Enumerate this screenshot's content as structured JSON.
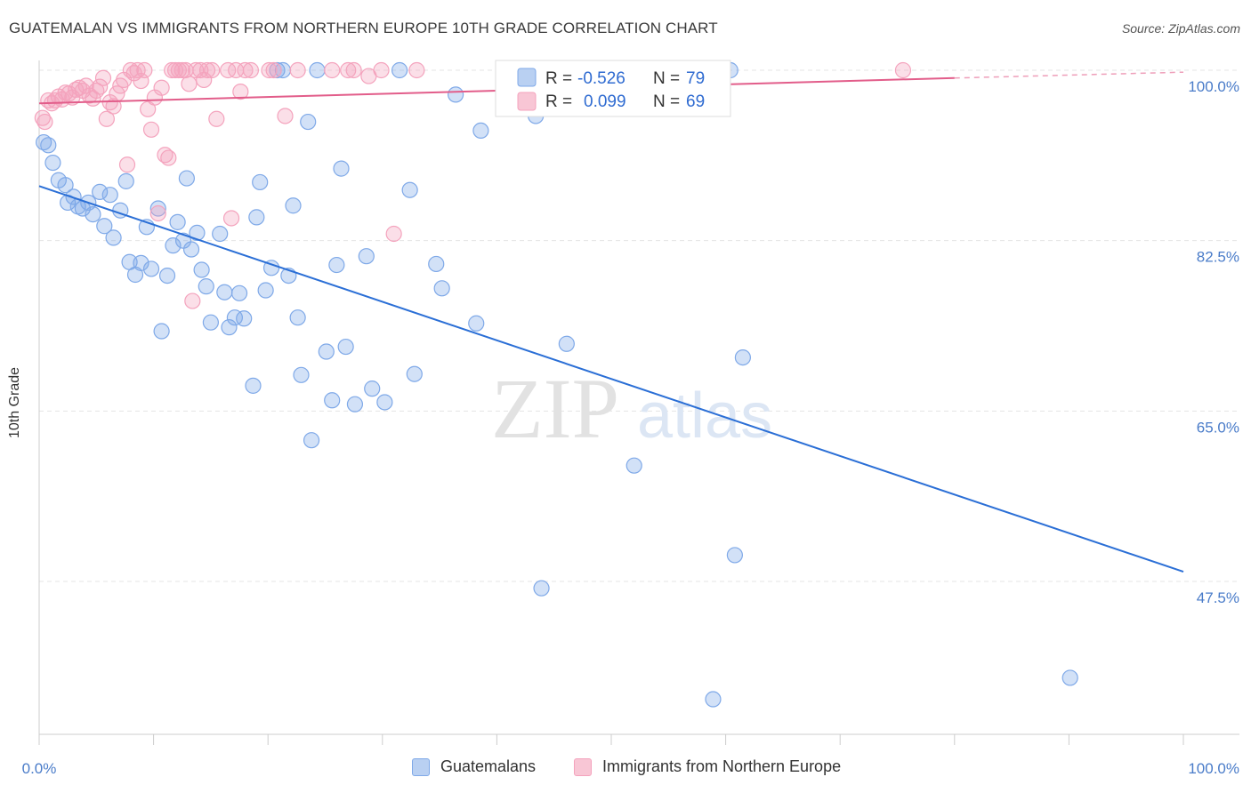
{
  "title": "GUATEMALAN VS IMMIGRANTS FROM NORTHERN EUROPE 10TH GRADE CORRELATION CHART",
  "source": "Source: ZipAtlas.com",
  "watermark": {
    "zip": "ZIP",
    "atlas": "atlas"
  },
  "legend": {
    "rows": [
      {
        "r_label": "R =",
        "r_value": "-0.526",
        "n_label": "N =",
        "n_value": "79"
      },
      {
        "r_label": "R =",
        "r_value": "0.099",
        "n_label": "N =",
        "n_value": "69"
      }
    ]
  },
  "chart_data": {
    "type": "scatter",
    "title": "GUATEMALAN VS IMMIGRANTS FROM NORTHERN EUROPE 10TH GRADE CORRELATION CHART",
    "xlabel": "",
    "ylabel": "10th Grade",
    "xlim": [
      0,
      100
    ],
    "ylim": [
      32.5,
      101.5
    ],
    "x_tick_labels": [
      "0.0%",
      "100.0%"
    ],
    "y_ticks": [
      100,
      82.5,
      65,
      47.5
    ],
    "y_tick_labels": [
      "100.0%",
      "82.5%",
      "65.0%",
      "47.5%"
    ],
    "grid": true,
    "legend_position": "bottom",
    "series": [
      {
        "name": "Guatemalans",
        "color": "#7fa9e8",
        "line_color": "#2b6fd6",
        "R": -0.526,
        "N": 79,
        "trend": {
          "x": [
            0,
            100
          ],
          "y": [
            88.1,
            48.5
          ]
        },
        "points": [
          [
            0.4,
            92.6
          ],
          [
            0.8,
            92.3
          ],
          [
            1.2,
            90.5
          ],
          [
            1.7,
            88.7
          ],
          [
            2.3,
            88.2
          ],
          [
            2.5,
            86.4
          ],
          [
            3.0,
            87.0
          ],
          [
            3.4,
            86.0
          ],
          [
            3.8,
            85.8
          ],
          [
            4.3,
            86.4
          ],
          [
            4.7,
            85.2
          ],
          [
            5.3,
            87.5
          ],
          [
            5.7,
            84.0
          ],
          [
            6.2,
            87.2
          ],
          [
            6.5,
            82.8
          ],
          [
            7.1,
            85.6
          ],
          [
            7.6,
            88.6
          ],
          [
            7.9,
            80.3
          ],
          [
            8.4,
            79.0
          ],
          [
            8.9,
            80.2
          ],
          [
            9.4,
            83.9
          ],
          [
            9.8,
            79.6
          ],
          [
            10.4,
            85.8
          ],
          [
            10.7,
            73.2
          ],
          [
            11.2,
            78.9
          ],
          [
            11.7,
            82.0
          ],
          [
            12.1,
            84.4
          ],
          [
            12.6,
            82.5
          ],
          [
            12.9,
            88.9
          ],
          [
            13.3,
            81.6
          ],
          [
            13.8,
            83.3
          ],
          [
            14.2,
            79.5
          ],
          [
            14.6,
            77.8
          ],
          [
            15.0,
            74.1
          ],
          [
            15.8,
            83.2
          ],
          [
            16.2,
            77.2
          ],
          [
            16.6,
            73.6
          ],
          [
            17.1,
            74.6
          ],
          [
            17.5,
            77.1
          ],
          [
            17.9,
            74.5
          ],
          [
            18.7,
            67.6
          ],
          [
            19.0,
            84.9
          ],
          [
            19.3,
            88.5
          ],
          [
            19.8,
            77.4
          ],
          [
            20.3,
            79.7
          ],
          [
            20.8,
            100.0
          ],
          [
            21.3,
            100.0
          ],
          [
            21.8,
            78.9
          ],
          [
            22.2,
            86.1
          ],
          [
            22.6,
            74.6
          ],
          [
            22.9,
            68.7
          ],
          [
            23.5,
            94.7
          ],
          [
            23.8,
            62.0
          ],
          [
            24.3,
            100.0
          ],
          [
            25.1,
            71.1
          ],
          [
            25.6,
            66.1
          ],
          [
            26.0,
            80.0
          ],
          [
            26.4,
            89.9
          ],
          [
            26.8,
            71.6
          ],
          [
            27.6,
            65.7
          ],
          [
            28.6,
            80.9
          ],
          [
            29.1,
            67.3
          ],
          [
            30.2,
            65.9
          ],
          [
            31.5,
            100.0
          ],
          [
            32.4,
            87.7
          ],
          [
            32.8,
            68.8
          ],
          [
            34.7,
            80.1
          ],
          [
            35.2,
            77.6
          ],
          [
            36.4,
            97.5
          ],
          [
            38.2,
            74.0
          ],
          [
            38.6,
            93.8
          ],
          [
            43.4,
            95.3
          ],
          [
            43.9,
            46.8
          ],
          [
            46.1,
            71.9
          ],
          [
            52.0,
            59.4
          ],
          [
            58.9,
            35.4
          ],
          [
            60.4,
            100.0
          ],
          [
            60.8,
            50.2
          ],
          [
            61.5,
            70.5
          ],
          [
            90.1,
            37.6
          ]
        ]
      },
      {
        "name": "Immigrants from Northern Europe",
        "color": "#f4a3bd",
        "line_color": "#e25d8a",
        "R": 0.099,
        "N": 69,
        "trend": {
          "x": [
            0,
            80
          ],
          "y": [
            96.6,
            99.2
          ]
        },
        "trend_dashed": {
          "x": [
            80,
            100
          ],
          "y": [
            99.2,
            99.8
          ]
        },
        "points": [
          [
            0.3,
            95.1
          ],
          [
            0.5,
            94.7
          ],
          [
            0.8,
            96.9
          ],
          [
            1.1,
            96.6
          ],
          [
            1.4,
            96.9
          ],
          [
            1.7,
            97.3
          ],
          [
            2.0,
            97.0
          ],
          [
            2.3,
            97.7
          ],
          [
            2.6,
            97.6
          ],
          [
            2.9,
            97.2
          ],
          [
            3.2,
            98.0
          ],
          [
            3.5,
            98.2
          ],
          [
            3.8,
            97.9
          ],
          [
            4.1,
            98.4
          ],
          [
            4.4,
            97.4
          ],
          [
            4.7,
            97.1
          ],
          [
            5.0,
            97.9
          ],
          [
            5.3,
            98.3
          ],
          [
            5.6,
            99.2
          ],
          [
            5.9,
            95.0
          ],
          [
            6.2,
            96.7
          ],
          [
            6.5,
            96.3
          ],
          [
            6.8,
            97.6
          ],
          [
            7.1,
            98.4
          ],
          [
            7.4,
            99.0
          ],
          [
            7.7,
            90.3
          ],
          [
            8.0,
            100.0
          ],
          [
            8.3,
            99.7
          ],
          [
            8.6,
            100.0
          ],
          [
            8.9,
            98.9
          ],
          [
            9.2,
            100.0
          ],
          [
            9.5,
            96.0
          ],
          [
            9.8,
            93.9
          ],
          [
            10.1,
            97.2
          ],
          [
            10.4,
            85.3
          ],
          [
            10.7,
            98.2
          ],
          [
            11.0,
            91.3
          ],
          [
            11.3,
            91.0
          ],
          [
            11.6,
            100.0
          ],
          [
            11.9,
            100.0
          ],
          [
            12.2,
            100.0
          ],
          [
            12.5,
            100.0
          ],
          [
            12.8,
            100.0
          ],
          [
            13.1,
            98.6
          ],
          [
            13.4,
            76.3
          ],
          [
            13.7,
            100.0
          ],
          [
            14.1,
            100.0
          ],
          [
            14.4,
            99.0
          ],
          [
            14.7,
            100.0
          ],
          [
            15.1,
            100.0
          ],
          [
            15.5,
            95.0
          ],
          [
            16.5,
            100.0
          ],
          [
            16.8,
            84.8
          ],
          [
            17.2,
            100.0
          ],
          [
            17.6,
            97.8
          ],
          [
            18.0,
            100.0
          ],
          [
            18.5,
            100.0
          ],
          [
            20.1,
            100.0
          ],
          [
            20.5,
            100.0
          ],
          [
            21.5,
            95.3
          ],
          [
            22.6,
            100.0
          ],
          [
            25.6,
            100.0
          ],
          [
            27.0,
            100.0
          ],
          [
            27.5,
            100.0
          ],
          [
            28.8,
            99.4
          ],
          [
            29.9,
            100.0
          ],
          [
            31.0,
            83.2
          ],
          [
            33.0,
            100.0
          ],
          [
            75.5,
            100.0
          ]
        ]
      }
    ]
  }
}
